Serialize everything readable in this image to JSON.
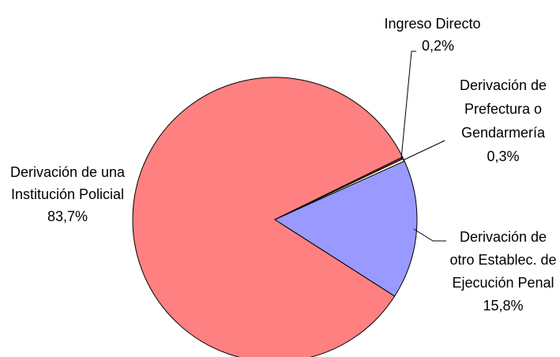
{
  "chart_data": {
    "type": "pie",
    "categories": [
      "Derivación de una Institución Policial",
      "Ingreso Directo",
      "Derivación de Prefectura o Gendarmería",
      "Derivación de otro Establec. de Ejecución Penal"
    ],
    "values": [
      83.7,
      0.2,
      0.3,
      15.8
    ],
    "value_labels": [
      "83,7%",
      "0,2%",
      "0,3%",
      "15,8%"
    ],
    "colors": [
      "#ff8080",
      "#993366",
      "#ffffcc",
      "#9999ff"
    ]
  }
}
